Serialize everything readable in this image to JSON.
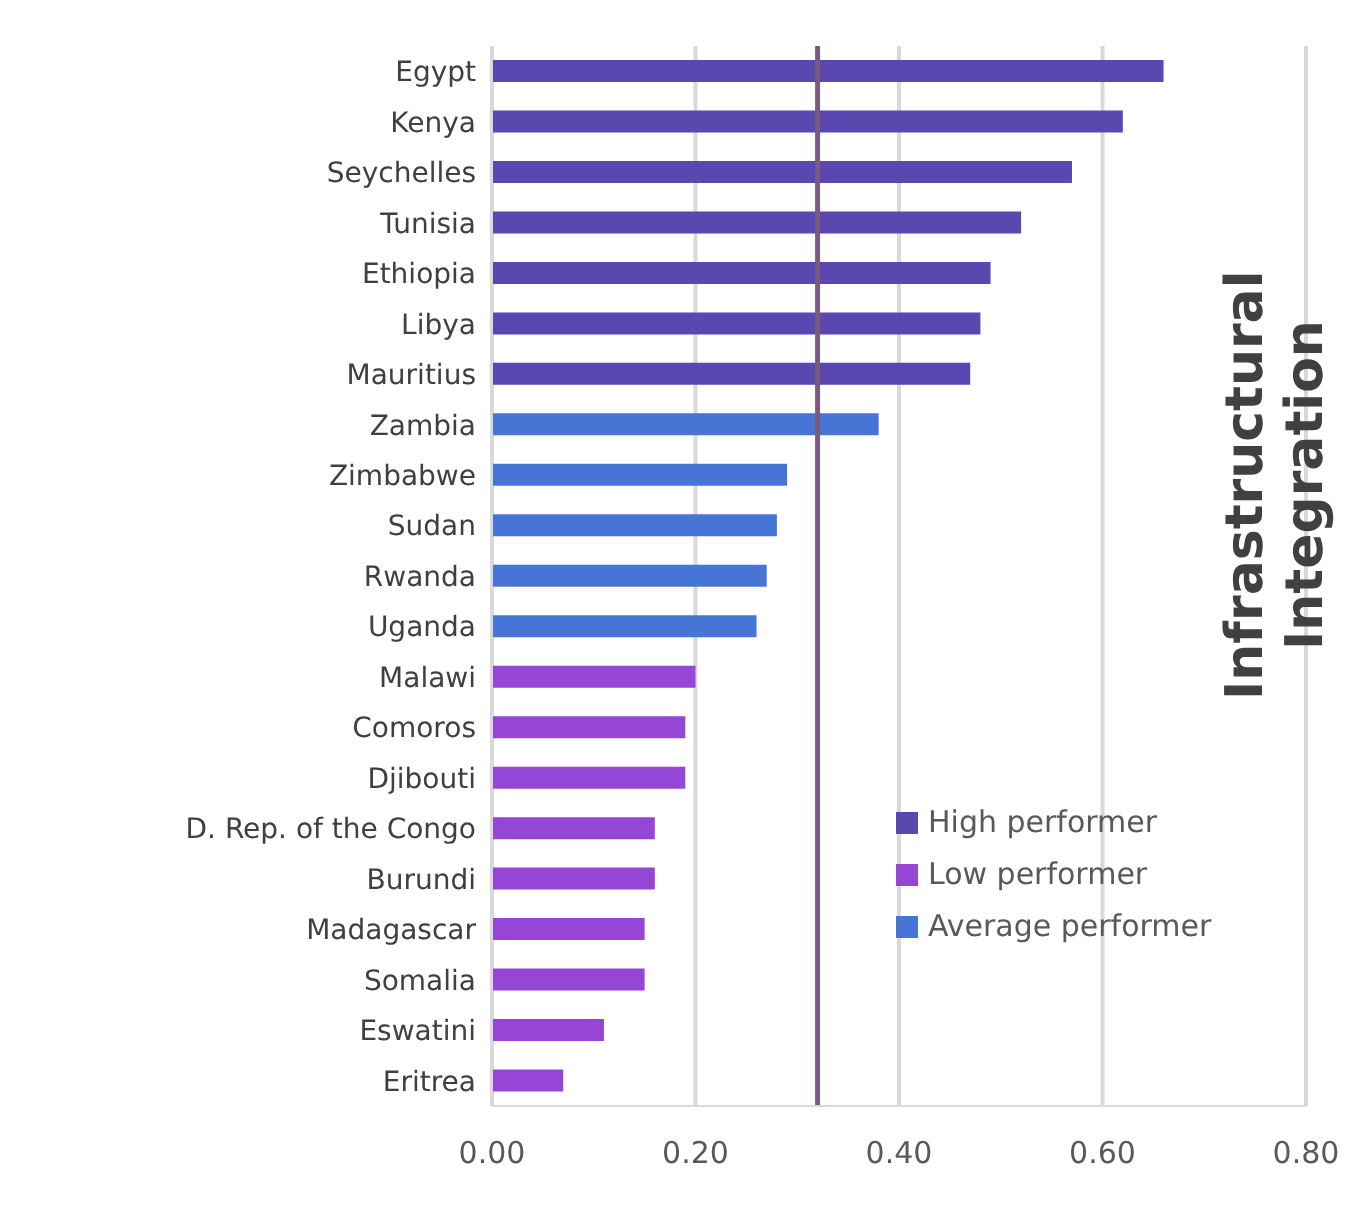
{
  "chart_data": {
    "type": "bar",
    "orientation": "horizontal",
    "stacked": true,
    "title": "Infrastructural Integration",
    "categories": [
      "Egypt",
      "Kenya",
      "Seychelles",
      "Tunisia",
      "Ethiopia",
      "Libya",
      "Mauritius",
      "Zambia",
      "Zimbabwe",
      "Sudan",
      "Rwanda",
      "Uganda",
      "Malawi",
      "Comoros",
      "Djibouti",
      "D. Rep. of the Congo",
      "Burundi",
      "Madagascar",
      "Somalia",
      "Eswatini",
      "Eritrea"
    ],
    "series": [
      {
        "name": "High performer",
        "color": "#5948b0",
        "values": [
          0.66,
          0.62,
          0.57,
          0.52,
          0.49,
          0.48,
          0.47,
          null,
          null,
          null,
          null,
          null,
          null,
          null,
          null,
          null,
          null,
          null,
          null,
          null,
          null
        ]
      },
      {
        "name": "Low performer",
        "color": "#9646d6",
        "values": [
          null,
          null,
          null,
          null,
          null,
          null,
          null,
          null,
          null,
          null,
          null,
          null,
          0.2,
          0.19,
          0.19,
          0.16,
          0.16,
          0.15,
          0.15,
          0.11,
          0.07
        ]
      },
      {
        "name": "Average performer",
        "color": "#4775d6",
        "values": [
          null,
          null,
          null,
          null,
          null,
          null,
          null,
          0.38,
          0.29,
          0.28,
          0.27,
          0.26,
          null,
          null,
          null,
          null,
          null,
          null,
          null,
          null,
          null
        ]
      }
    ],
    "xlim": [
      0,
      0.8
    ],
    "xticks": [
      {
        "value": 0,
        "label": "0.00"
      },
      {
        "value": 0.2,
        "label": "0.20"
      },
      {
        "value": 0.4,
        "label": "0.40"
      },
      {
        "value": 0.6,
        "label": "0.60"
      },
      {
        "value": 0.8,
        "label": "0.80"
      }
    ],
    "grid": "x",
    "legend": "right",
    "ref_lines": [
      {
        "axis": "x",
        "value": 0.32,
        "color": "#7b5a80"
      }
    ]
  }
}
